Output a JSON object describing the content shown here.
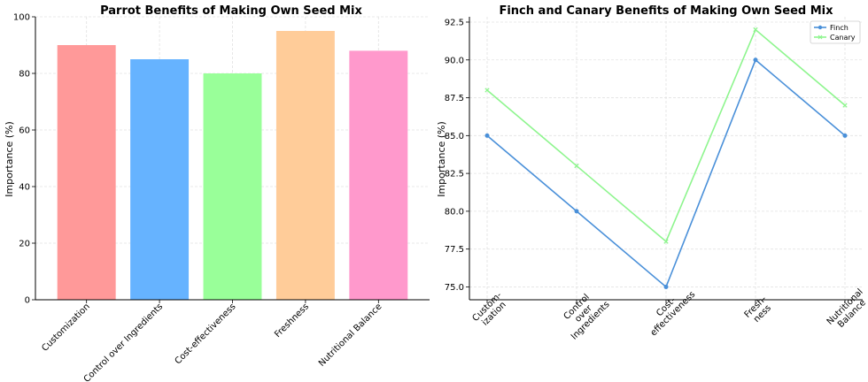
{
  "chart_data": [
    {
      "type": "bar",
      "title": "Parrot Benefits of Making Own Seed Mix",
      "xlabel": "",
      "ylabel": "Importance (%)",
      "categories": [
        "Customization",
        "Control over Ingredients",
        "Cost-effectiveness",
        "Freshness",
        "Nutritional Balance"
      ],
      "values": [
        90,
        85,
        80,
        95,
        88
      ],
      "colors": [
        "#ff9999",
        "#66b3ff",
        "#99ff99",
        "#ffcc99",
        "#ff99cc"
      ],
      "ylim": [
        0,
        100
      ],
      "yticks": [
        "0",
        "20",
        "40",
        "60",
        "80",
        "100"
      ],
      "grid": true
    },
    {
      "type": "line",
      "title": "Finch and Canary Benefits of Making Own Seed Mix",
      "xlabel": "",
      "ylabel": "Importance (%)",
      "categories": [
        "Custom-\nization",
        "Control\nover\nIngredients",
        "Cost-\neffectiveness",
        "Fresh-\nness",
        "Nutritional\nBalance"
      ],
      "series": [
        {
          "name": "Finch",
          "values": [
            85,
            80,
            75,
            90,
            85
          ],
          "color": "#4a90d9",
          "marker": "circle"
        },
        {
          "name": "Canary",
          "values": [
            88,
            83,
            78,
            92,
            87
          ],
          "color": "#8ef58e",
          "marker": "x"
        }
      ],
      "ylim": [
        74.15,
        92.85
      ],
      "yticks": [
        "75.0",
        "77.5",
        "80.0",
        "82.5",
        "85.0",
        "87.5",
        "90.0",
        "92.5"
      ],
      "grid": true,
      "legend_position": "top-right"
    }
  ]
}
